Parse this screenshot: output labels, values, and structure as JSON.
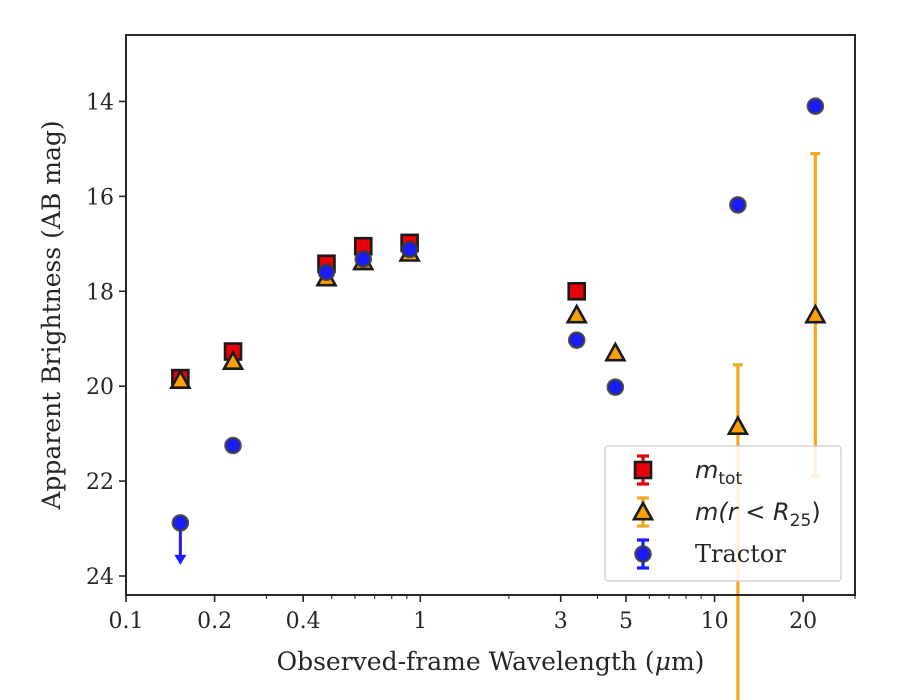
{
  "chart_data": {
    "type": "scatter",
    "title": "",
    "xlabel": "Observed-frame Wavelength (",
    "xlabel_unit": "μ",
    "xlabel_unit_rest": "m)",
    "ylabel": "Apparent Brightness (AB mag)",
    "xscale": "log",
    "xlim": [
      0.1,
      30
    ],
    "ylim": [
      24.4,
      12.6
    ],
    "y_inverted": true,
    "grid": false,
    "legend_position": "lower-right",
    "x_ticks": [
      {
        "value": 0.1,
        "label": "0.1"
      },
      {
        "value": 0.2,
        "label": "0.2"
      },
      {
        "value": 0.4,
        "label": "0.4"
      },
      {
        "value": 1,
        "label": "1"
      },
      {
        "value": 3,
        "label": "3"
      },
      {
        "value": 5,
        "label": "5"
      },
      {
        "value": 10,
        "label": "10"
      },
      {
        "value": 20,
        "label": "20"
      }
    ],
    "y_ticks": [
      {
        "value": 14,
        "label": "14"
      },
      {
        "value": 16,
        "label": "16"
      },
      {
        "value": 18,
        "label": "18"
      },
      {
        "value": 20,
        "label": "20"
      },
      {
        "value": 22,
        "label": "22"
      },
      {
        "value": 24,
        "label": "24"
      }
    ],
    "series": [
      {
        "name": "m_tot",
        "legend_main": "m",
        "legend_sub": "tot",
        "marker": "square",
        "color": "#e8000b",
        "error_color": "#e8000b",
        "points": [
          {
            "x": 0.153,
            "y": 19.83,
            "err": 0.05
          },
          {
            "x": 0.231,
            "y": 19.27,
            "err": 0.05
          },
          {
            "x": 0.48,
            "y": 17.42,
            "err": 0.05
          },
          {
            "x": 0.64,
            "y": 17.05,
            "err": 0.05
          },
          {
            "x": 0.92,
            "y": 16.98,
            "err": 0.05
          },
          {
            "x": 3.4,
            "y": 18.0,
            "err": 0.05
          }
        ]
      },
      {
        "name": "m(r<R25)",
        "legend_main": "m",
        "legend_paren": "(r < R",
        "legend_sub": "25",
        "legend_close": ")",
        "marker": "triangle",
        "color": "#ff9f00",
        "error_color": "#f5a623",
        "points": [
          {
            "x": 0.153,
            "y": 19.88,
            "err": 0.05
          },
          {
            "x": 0.231,
            "y": 19.48,
            "err": 0.05
          },
          {
            "x": 0.48,
            "y": 17.72,
            "err": 0.05
          },
          {
            "x": 0.64,
            "y": 17.38,
            "err": 0.05
          },
          {
            "x": 0.92,
            "y": 17.2,
            "err": 0.05
          },
          {
            "x": 3.4,
            "y": 18.5,
            "err": 0.05
          },
          {
            "x": 4.6,
            "y": 19.3,
            "err": 0.05
          },
          {
            "x": 12.0,
            "y": 20.85,
            "err_low": 6.3,
            "err_high": 1.3
          },
          {
            "x": 22.0,
            "y": 18.5,
            "err_low": 3.4,
            "err_high": 3.4
          }
        ]
      },
      {
        "name": "Tractor",
        "legend_main": "Tractor",
        "marker": "circle",
        "color": "#1b1bff",
        "error_color": "#1b1bff",
        "points": [
          {
            "x": 0.153,
            "y": 22.88,
            "upper_limit": true
          },
          {
            "x": 0.231,
            "y": 21.25,
            "err": 0.05
          },
          {
            "x": 0.48,
            "y": 17.6,
            "err": 0.05
          },
          {
            "x": 0.64,
            "y": 17.32,
            "err": 0.05
          },
          {
            "x": 0.92,
            "y": 17.12,
            "err": 0.05
          },
          {
            "x": 3.4,
            "y": 19.03,
            "err": 0.05
          },
          {
            "x": 4.6,
            "y": 20.02,
            "err": 0.05
          },
          {
            "x": 12.0,
            "y": 16.18,
            "err": 0.05
          },
          {
            "x": 22.0,
            "y": 14.1,
            "err": 0.05
          }
        ]
      }
    ]
  }
}
